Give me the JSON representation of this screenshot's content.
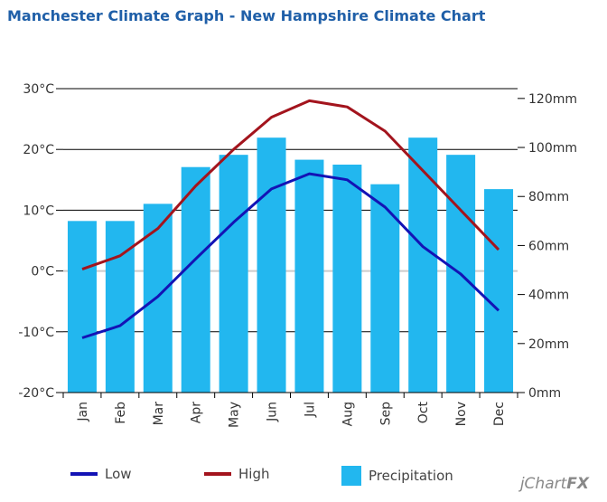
{
  "title": "Manchester Climate Graph - New Hampshire Climate Chart",
  "brand": {
    "prefix": "j",
    "name": "Chart",
    "suffix": "FX"
  },
  "legend": {
    "low": "Low",
    "high": "High",
    "precip": "Precipitation"
  },
  "colors": {
    "low": "#1313b5",
    "high": "#a3141d",
    "precip": "#22b7ef",
    "title": "#1f5fa8"
  },
  "chart_data": {
    "type": "bar",
    "title": "Manchester Climate Graph - New Hampshire Climate Chart",
    "categories": [
      "Jan",
      "Feb",
      "Mar",
      "Apr",
      "May",
      "Jun",
      "Jul",
      "Aug",
      "Sep",
      "Oct",
      "Nov",
      "Dec"
    ],
    "left_axis": {
      "ticks": [
        "30°C",
        "20°C",
        "10°C",
        "0°C",
        "-10°C",
        "-20°C"
      ],
      "values": [
        30,
        20,
        10,
        0,
        -10,
        -20
      ],
      "range": [
        -20,
        30
      ]
    },
    "right_axis": {
      "ticks": [
        "120mm",
        "100mm",
        "80mm",
        "60mm",
        "40mm",
        "20mm",
        "0mm"
      ],
      "values": [
        120,
        100,
        80,
        60,
        40,
        20,
        0
      ],
      "range": [
        0,
        124
      ]
    },
    "series": [
      {
        "name": "Precipitation",
        "type": "bar",
        "axis": "right",
        "values": [
          70,
          70,
          77,
          92,
          97,
          104,
          95,
          93,
          85,
          104,
          97,
          83
        ]
      },
      {
        "name": "Low",
        "type": "line",
        "axis": "left",
        "values": [
          -11,
          -9,
          -4.2,
          2,
          8,
          13.5,
          16,
          15,
          10.5,
          4,
          -0.5,
          -6.5
        ]
      },
      {
        "name": "High",
        "type": "line",
        "axis": "left",
        "values": [
          0.3,
          2.5,
          7,
          14,
          20,
          25.3,
          28,
          27,
          23,
          16.5,
          10,
          3.5
        ]
      }
    ],
    "grid": true,
    "legend_position": "bottom"
  }
}
